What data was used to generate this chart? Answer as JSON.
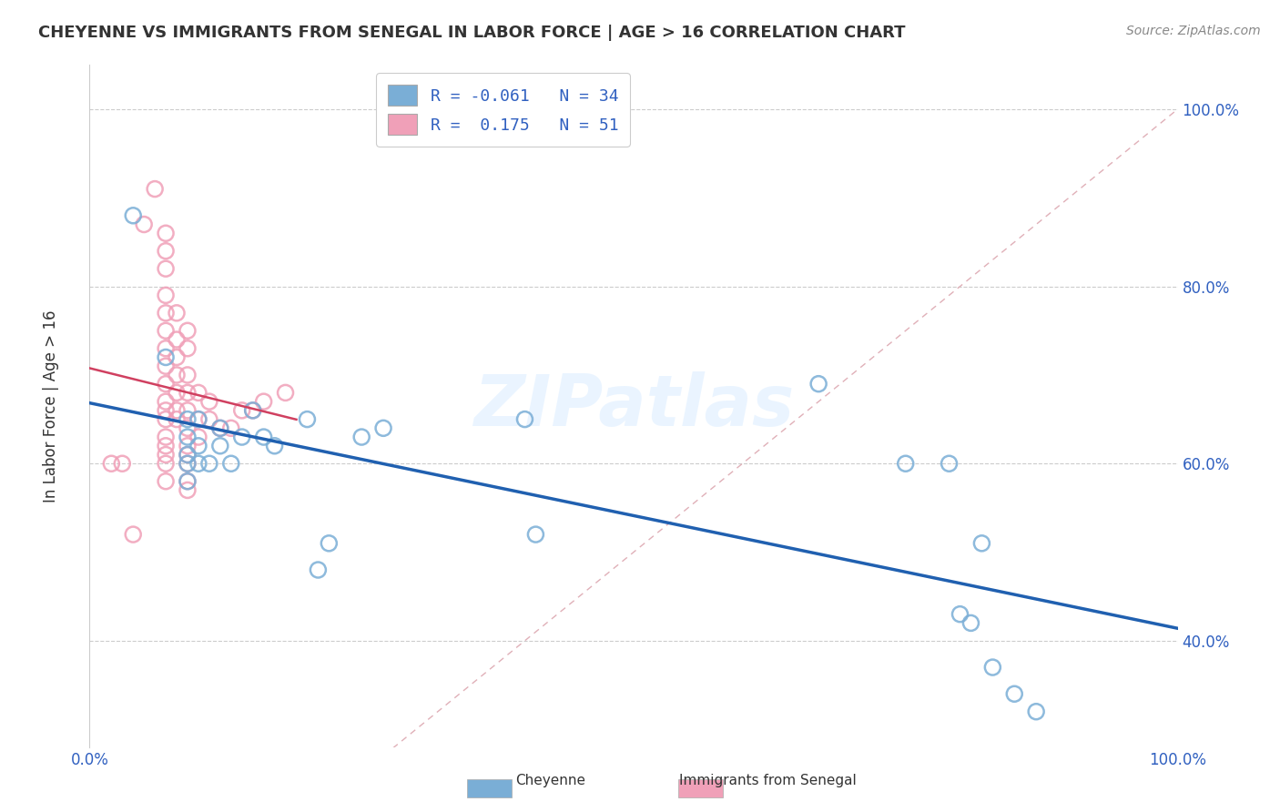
{
  "title": "CHEYENNE VS IMMIGRANTS FROM SENEGAL IN LABOR FORCE | AGE > 16 CORRELATION CHART",
  "source_text": "Source: ZipAtlas.com",
  "ylabel": "In Labor Force | Age > 16",
  "xlim": [
    0.0,
    1.0
  ],
  "ylim": [
    0.28,
    1.05
  ],
  "cheyenne_R": -0.061,
  "cheyenne_N": 34,
  "senegal_R": 0.175,
  "senegal_N": 51,
  "cheyenne_color": "#7aaed6",
  "senegal_color": "#f0a0b8",
  "cheyenne_line_color": "#2060b0",
  "senegal_line_color": "#d04060",
  "diagonal_color": "#e0b0b8",
  "watermark": "ZIPatlas",
  "cheyenne_x": [
    0.04,
    0.07,
    0.09,
    0.09,
    0.09,
    0.09,
    0.09,
    0.1,
    0.1,
    0.1,
    0.11,
    0.12,
    0.12,
    0.13,
    0.14,
    0.15,
    0.16,
    0.17,
    0.2,
    0.21,
    0.22,
    0.25,
    0.27,
    0.4,
    0.41,
    0.67,
    0.75,
    0.79,
    0.8,
    0.81,
    0.82,
    0.83,
    0.85,
    0.87
  ],
  "cheyenne_y": [
    0.88,
    0.72,
    0.65,
    0.63,
    0.61,
    0.6,
    0.58,
    0.65,
    0.62,
    0.6,
    0.6,
    0.64,
    0.62,
    0.6,
    0.63,
    0.66,
    0.63,
    0.62,
    0.65,
    0.48,
    0.51,
    0.63,
    0.64,
    0.65,
    0.52,
    0.69,
    0.6,
    0.6,
    0.43,
    0.42,
    0.51,
    0.37,
    0.34,
    0.32
  ],
  "senegal_x": [
    0.02,
    0.03,
    0.04,
    0.05,
    0.06,
    0.07,
    0.07,
    0.07,
    0.07,
    0.07,
    0.07,
    0.07,
    0.07,
    0.07,
    0.07,
    0.07,
    0.07,
    0.07,
    0.07,
    0.07,
    0.07,
    0.07,
    0.08,
    0.08,
    0.08,
    0.08,
    0.08,
    0.08,
    0.08,
    0.09,
    0.09,
    0.09,
    0.09,
    0.09,
    0.09,
    0.09,
    0.09,
    0.09,
    0.09,
    0.09,
    0.1,
    0.1,
    0.1,
    0.11,
    0.11,
    0.12,
    0.13,
    0.14,
    0.15,
    0.16,
    0.18
  ],
  "senegal_y": [
    0.6,
    0.6,
    0.52,
    0.87,
    0.91,
    0.86,
    0.84,
    0.82,
    0.79,
    0.77,
    0.75,
    0.73,
    0.71,
    0.69,
    0.67,
    0.66,
    0.65,
    0.63,
    0.62,
    0.61,
    0.6,
    0.58,
    0.77,
    0.74,
    0.72,
    0.7,
    0.68,
    0.66,
    0.65,
    0.75,
    0.73,
    0.7,
    0.68,
    0.66,
    0.64,
    0.62,
    0.61,
    0.6,
    0.58,
    0.57,
    0.68,
    0.65,
    0.63,
    0.67,
    0.65,
    0.64,
    0.64,
    0.66,
    0.66,
    0.67,
    0.68
  ]
}
